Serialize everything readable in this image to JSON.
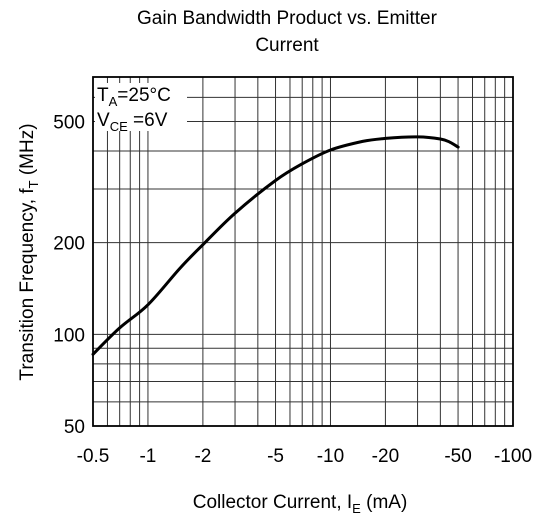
{
  "chart_data": {
    "type": "line",
    "title_line1": "Gain Bandwidth Product vs. Emitter",
    "title_line2": "Current",
    "xlabel": {
      "prefix": "Collector Current, I",
      "sub": "E",
      "suffix": " (mA)"
    },
    "ylabel": {
      "prefix": "Transition Frequency, f",
      "sub": "T",
      "suffix": " (MHz)"
    },
    "x_scale": "log",
    "y_scale": "log",
    "x_note": "axis shows negative emitter current; magnitude plotted on log scale",
    "xlim": [
      -0.5,
      -100
    ],
    "ylim": [
      50,
      700
    ],
    "x_ticks": [
      {
        "value": -0.5,
        "label": "-0.5"
      },
      {
        "value": -1,
        "label": "-1"
      },
      {
        "value": -2,
        "label": "-2"
      },
      {
        "value": -5,
        "label": "-5"
      },
      {
        "value": -10,
        "label": "-10"
      },
      {
        "value": -20,
        "label": "-20"
      },
      {
        "value": -50,
        "label": "-50"
      },
      {
        "value": -100,
        "label": "-100"
      }
    ],
    "y_ticks": [
      {
        "value": 50,
        "label": "50"
      },
      {
        "value": 100,
        "label": "100"
      },
      {
        "value": 200,
        "label": "200"
      },
      {
        "value": 500,
        "label": "500"
      }
    ],
    "x_grid": [
      -0.5,
      -0.6,
      -0.7,
      -0.8,
      -0.9,
      -1,
      -2,
      -3,
      -4,
      -5,
      -6,
      -7,
      -8,
      -9,
      -10,
      -20,
      -30,
      -40,
      -50,
      -60,
      -70,
      -80,
      -90,
      -100
    ],
    "y_grid": [
      50,
      60,
      70,
      80,
      90,
      100,
      200,
      300,
      400,
      500,
      600,
      700
    ],
    "grid": true,
    "annotations": {
      "ta": {
        "prefix": "T",
        "sub": "A",
        "suffix": "=25°C"
      },
      "vce": {
        "prefix": "V",
        "sub": "CE",
        "suffix": " =6V"
      }
    },
    "series": [
      {
        "x": [
          -0.5,
          -0.7,
          -1,
          -1.5,
          -2,
          -3,
          -5,
          -7,
          -10,
          -15,
          -20,
          -30,
          -40,
          -45,
          -50
        ],
        "y": [
          86,
          105,
          125,
          165,
          197,
          250,
          320,
          363,
          403,
          430,
          440,
          445,
          438,
          428,
          412
        ]
      }
    ]
  }
}
